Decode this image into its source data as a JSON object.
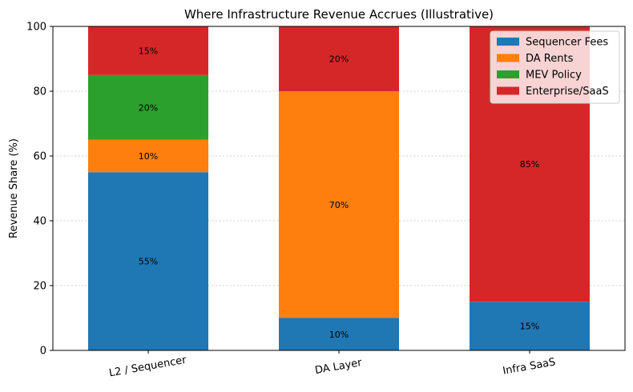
{
  "chart_data": {
    "type": "bar",
    "stacked": true,
    "title": "Where Infrastructure Revenue Accrues (Illustrative)",
    "xlabel": "",
    "ylabel": "Revenue Share (%)",
    "ylim": [
      0,
      100
    ],
    "yticks": [
      "0",
      "20",
      "40",
      "60",
      "80",
      "100"
    ],
    "categories": [
      "L2 / Sequencer",
      "DA Layer",
      "Infra SaaS"
    ],
    "series": [
      {
        "name": "Sequencer Fees",
        "color": "#1f77b4",
        "values": [
          55,
          10,
          15
        ],
        "labels": [
          "55%",
          "10%",
          "15%"
        ]
      },
      {
        "name": "DA Rents",
        "color": "#ff7f0e",
        "values": [
          10,
          70,
          0
        ],
        "labels": [
          "10%",
          "70%",
          ""
        ]
      },
      {
        "name": "MEV Policy",
        "color": "#2ca02c",
        "values": [
          20,
          0,
          0
        ],
        "labels": [
          "20%",
          "",
          ""
        ]
      },
      {
        "name": "Enterprise/SaaS",
        "color": "#d62728",
        "values": [
          15,
          20,
          85
        ],
        "labels": [
          "15%",
          "20%",
          "85%"
        ]
      }
    ],
    "grid": true,
    "legend_position": "top-right"
  }
}
